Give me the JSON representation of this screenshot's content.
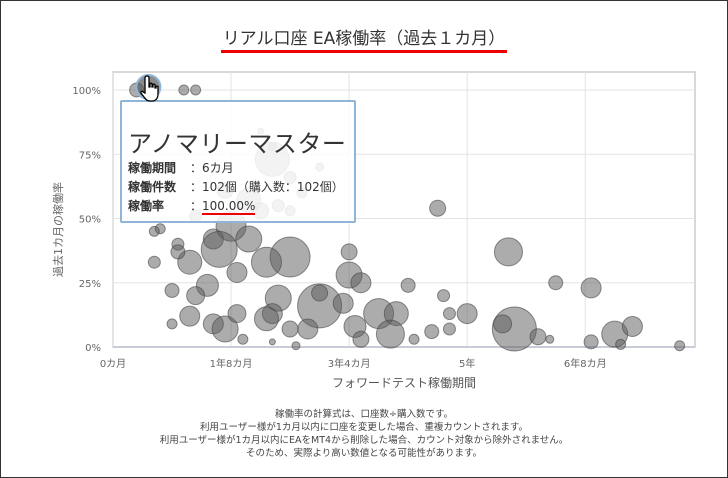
{
  "title": "リアル口座 EA稼働率（過去１カ月）",
  "colors": {
    "bubble": "#6e6e6e",
    "highlight": "#8fb5d9",
    "accent": "#e00000"
  },
  "tooltip": {
    "name": "アノマリーマスター",
    "rows": [
      {
        "label": "稼働期間",
        "value": "：6カ月"
      },
      {
        "label": "稼働件数",
        "value": "：102個（購入数：102個）"
      },
      {
        "label": "稼働率",
        "value": "：",
        "rate": "100.00%"
      }
    ]
  },
  "notes": [
    "稼働率の計算式は、口座数÷購入数です。",
    "利用ユーザー様が1カ月以内に口座を変更した場合、重複カウントされます。",
    "利用ユーザー様が1カ月以内にEAをMT4から削除した場合、カウント対象から除外されません。",
    "そのため、実際より高い数値となる可能性があります。"
  ],
  "cursor_icon": "hand-pointer-icon",
  "chart_data": {
    "type": "scatter",
    "subtype": "bubble",
    "xlabel": "フォワードテスト稼働期間",
    "ylabel": "過去1カ月の稼働率",
    "xlim": [
      0,
      98.6
    ],
    "ylim": [
      0,
      100
    ],
    "x_unit": "months",
    "y_unit": "%",
    "xticks": [
      {
        "v": 0,
        "label": "0カ月"
      },
      {
        "v": 20,
        "label": "1年8カ月"
      },
      {
        "v": 40,
        "label": "3年4カ月"
      },
      {
        "v": 60,
        "label": "5年"
      },
      {
        "v": 80,
        "label": "6年8カ月"
      }
    ],
    "yticks": [
      {
        "v": 0,
        "label": "0%"
      },
      {
        "v": 25,
        "label": "25%"
      },
      {
        "v": 50,
        "label": "50%"
      },
      {
        "v": 75,
        "label": "75%"
      },
      {
        "v": 100,
        "label": "100%"
      }
    ],
    "grid": true,
    "highlighted": {
      "x": 6,
      "y": 100,
      "size": 12
    },
    "points": [
      [
        4,
        100,
        7
      ],
      [
        12,
        100,
        5
      ],
      [
        14,
        100,
        5
      ],
      [
        27,
        73,
        17
      ],
      [
        30,
        66,
        6
      ],
      [
        35,
        70,
        4
      ],
      [
        32,
        60,
        5
      ],
      [
        25,
        84,
        3
      ],
      [
        27,
        78,
        4
      ],
      [
        19,
        61,
        8
      ],
      [
        23,
        57,
        12
      ],
      [
        20,
        47,
        15
      ],
      [
        17,
        42,
        10
      ],
      [
        25,
        53,
        8
      ],
      [
        8,
        46,
        5
      ],
      [
        11,
        40,
        6
      ],
      [
        14,
        51,
        6
      ],
      [
        30,
        53,
        5
      ],
      [
        55,
        54,
        8
      ],
      [
        67,
        37,
        14
      ],
      [
        75,
        25,
        7
      ],
      [
        81,
        23,
        10
      ],
      [
        68,
        7,
        22
      ],
      [
        66,
        9,
        9
      ],
      [
        72,
        4,
        8
      ],
      [
        74,
        3,
        4
      ],
      [
        85,
        5,
        13
      ],
      [
        88,
        8,
        10
      ],
      [
        81,
        2,
        7
      ],
      [
        86,
        1,
        5
      ],
      [
        96,
        0.5,
        5
      ],
      [
        50,
        24,
        7
      ],
      [
        56,
        20,
        6
      ],
      [
        60,
        13,
        10
      ],
      [
        57,
        13,
        6
      ],
      [
        57,
        7,
        6
      ],
      [
        54,
        6,
        7
      ],
      [
        51,
        3,
        5
      ],
      [
        45,
        13,
        15
      ],
      [
        48,
        13,
        12
      ],
      [
        47,
        5,
        14
      ],
      [
        40,
        37,
        8
      ],
      [
        40,
        28,
        13
      ],
      [
        42,
        25,
        10
      ],
      [
        35,
        16,
        22
      ],
      [
        35,
        21,
        8
      ],
      [
        39,
        17,
        10
      ],
      [
        41,
        8,
        11
      ],
      [
        42,
        3,
        8
      ],
      [
        33,
        7,
        10
      ],
      [
        30,
        7,
        8
      ],
      [
        28,
        19,
        13
      ],
      [
        27,
        13,
        10
      ],
      [
        26,
        11,
        12
      ],
      [
        30,
        35,
        20
      ],
      [
        26,
        33,
        15
      ],
      [
        23,
        42,
        13
      ],
      [
        18,
        38,
        18
      ],
      [
        13,
        33,
        12
      ],
      [
        7,
        33,
        6
      ],
      [
        11,
        37,
        7
      ],
      [
        7,
        45,
        5
      ],
      [
        21,
        29,
        10
      ],
      [
        16,
        24,
        11
      ],
      [
        14,
        20,
        9
      ],
      [
        10,
        22,
        7
      ],
      [
        13,
        12,
        10
      ],
      [
        17,
        9,
        10
      ],
      [
        19,
        7,
        13
      ],
      [
        21,
        13,
        9
      ],
      [
        22,
        3,
        5
      ],
      [
        10,
        9,
        5
      ],
      [
        27,
        2,
        3
      ],
      [
        31,
        0.5,
        4
      ],
      [
        28,
        55,
        6
      ]
    ]
  }
}
